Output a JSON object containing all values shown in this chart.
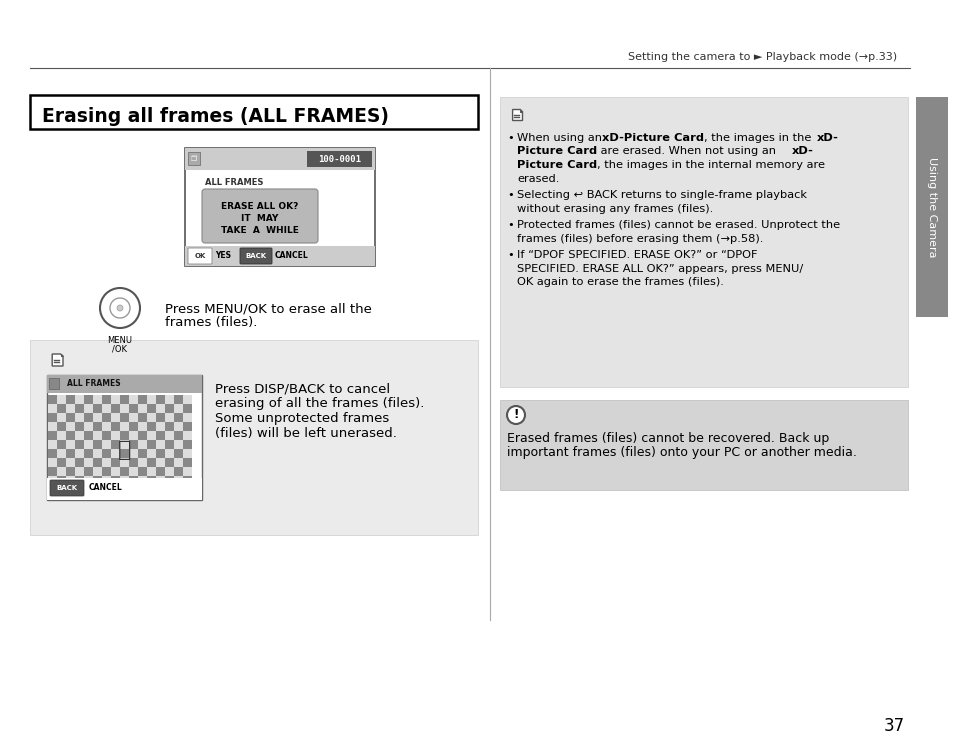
{
  "page_bg": "#ffffff",
  "header_text": "Setting the camera to ► Playback mode (→p.33)",
  "title": "Erasing all frames (ALL FRAMES)",
  "sidebar_text": "Using the Camera",
  "page_number": "37",
  "screen1_tag": "100-0001",
  "screen1_label": "ALL FRAMES",
  "screen1_dialog_line1": "ERASE ALL OK?",
  "screen1_dialog_line2": "IT  MAY",
  "screen1_dialog_line3": "TAKE  A  WHILE",
  "step1_text_line1": "Press MENU/OK to erase all the",
  "step1_text_line2": "frames (files).",
  "menu_ok_line1": "MENU",
  "menu_ok_line2": "/OK",
  "screen2_label": "ALL FRAMES",
  "step2_line1": "Press DISP/BACK to cancel",
  "step2_line2": "erasing of all the frames (files).",
  "step2_line3": "Some unprotected frames",
  "step2_line4": "(files) will be left unerased.",
  "b1_pre": "When using an ",
  "b1_bold1": "xD-Picture Card",
  "b1_mid": ", the images in the ",
  "b1_bold2": "xD-",
  "b1_line2a": "Picture Card",
  "b1_line2b": " are erased. When not using an ",
  "b1_bold3": "xD-",
  "b1_line3a": "Picture Card",
  "b1_line3b": ", the images in the internal memory are",
  "b1_line4": "erased.",
  "b2_line1": "Selecting ↩ BACK returns to single-frame playback",
  "b2_line2": "without erasing any frames (files).",
  "b3_line1": "Protected frames (files) cannot be erased. Unprotect the",
  "b3_line2": "frames (files) before erasing them (→p.58).",
  "b4_line1": "If “DPOF SPECIFIED. ERASE OK?” or “DPOF",
  "b4_line2": "SPECIFIED. ERASE ALL OK?” appears, press MENU/",
  "b4_line3": "OK again to erase the frames (files).",
  "warn_line1": "Erased frames (files) cannot be recovered. Back up",
  "warn_line2": "important frames (files) onto your PC or another media."
}
